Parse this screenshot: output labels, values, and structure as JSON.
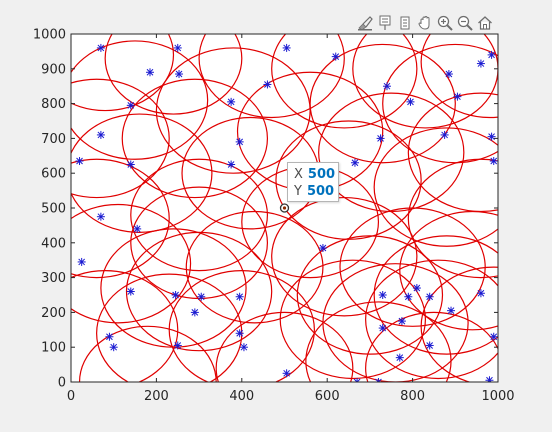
{
  "toolbar": {
    "icons": [
      "brush-icon",
      "data-tips-icon",
      "select-icon",
      "pan-icon",
      "zoom-in-icon",
      "zoom-out-icon",
      "home-icon"
    ]
  },
  "colors": {
    "circle": "#e00000",
    "marker": "#1a1ad1",
    "axes_bg": "#ffffff",
    "figure_bg": "#f0f0f0",
    "datatip_value": "#0072bd"
  },
  "datatip": {
    "x_label": "X",
    "x_value": "500",
    "y_label": "Y",
    "y_value": "500"
  },
  "chart_data": {
    "type": "scatter",
    "xlim": [
      0,
      1000
    ],
    "ylim": [
      0,
      1000
    ],
    "x_ticks": [
      "0",
      "200",
      "400",
      "600",
      "800",
      "1000"
    ],
    "y_ticks": [
      "0",
      "100",
      "200",
      "300",
      "400",
      "500",
      "600",
      "700",
      "800",
      "900",
      "1000"
    ],
    "grid": false,
    "highlighted_point": {
      "x": 500,
      "y": 500
    },
    "points": [
      {
        "x": 70,
        "y": 960
      },
      {
        "x": 250,
        "y": 960
      },
      {
        "x": 505,
        "y": 960
      },
      {
        "x": 620,
        "y": 935
      },
      {
        "x": 985,
        "y": 940
      },
      {
        "x": 185,
        "y": 890
      },
      {
        "x": 253,
        "y": 885
      },
      {
        "x": 460,
        "y": 855
      },
      {
        "x": 740,
        "y": 850
      },
      {
        "x": 885,
        "y": 885
      },
      {
        "x": 140,
        "y": 795
      },
      {
        "x": 375,
        "y": 805
      },
      {
        "x": 795,
        "y": 805
      },
      {
        "x": 905,
        "y": 820
      },
      {
        "x": 70,
        "y": 710
      },
      {
        "x": 395,
        "y": 690
      },
      {
        "x": 725,
        "y": 700
      },
      {
        "x": 875,
        "y": 710
      },
      {
        "x": 985,
        "y": 705
      },
      {
        "x": 20,
        "y": 635
      },
      {
        "x": 140,
        "y": 625
      },
      {
        "x": 375,
        "y": 625
      },
      {
        "x": 665,
        "y": 630
      },
      {
        "x": 990,
        "y": 635
      },
      {
        "x": 70,
        "y": 475
      },
      {
        "x": 155,
        "y": 440
      },
      {
        "x": 590,
        "y": 385
      },
      {
        "x": 25,
        "y": 345
      },
      {
        "x": 140,
        "y": 260
      },
      {
        "x": 245,
        "y": 250
      },
      {
        "x": 305,
        "y": 245
      },
      {
        "x": 395,
        "y": 245
      },
      {
        "x": 290,
        "y": 200
      },
      {
        "x": 730,
        "y": 250
      },
      {
        "x": 790,
        "y": 245
      },
      {
        "x": 840,
        "y": 245
      },
      {
        "x": 890,
        "y": 205
      },
      {
        "x": 960,
        "y": 255
      },
      {
        "x": 90,
        "y": 130
      },
      {
        "x": 100,
        "y": 100
      },
      {
        "x": 250,
        "y": 105
      },
      {
        "x": 395,
        "y": 140
      },
      {
        "x": 405,
        "y": 100
      },
      {
        "x": 730,
        "y": 155
      },
      {
        "x": 775,
        "y": 175
      },
      {
        "x": 840,
        "y": 105
      },
      {
        "x": 990,
        "y": 130
      },
      {
        "x": 770,
        "y": 70
      },
      {
        "x": 505,
        "y": 25
      },
      {
        "x": 670,
        "y": 0
      },
      {
        "x": 720,
        "y": 0
      },
      {
        "x": 980,
        "y": 5
      },
      {
        "x": 960,
        "y": 915
      },
      {
        "x": 810,
        "y": 270
      }
    ],
    "circles": [
      {
        "cx": 80,
        "cy": 940,
        "r": 160
      },
      {
        "cx": 240,
        "cy": 930,
        "r": 160
      },
      {
        "cx": 470,
        "cy": 930,
        "r": 170
      },
      {
        "cx": 640,
        "cy": 900,
        "r": 170
      },
      {
        "cx": 830,
        "cy": 900,
        "r": 170
      },
      {
        "cx": 980,
        "cy": 920,
        "r": 160
      },
      {
        "cx": 150,
        "cy": 810,
        "r": 170
      },
      {
        "cx": 380,
        "cy": 780,
        "r": 180
      },
      {
        "cx": 730,
        "cy": 800,
        "r": 170
      },
      {
        "cx": 900,
        "cy": 800,
        "r": 170
      },
      {
        "cx": 60,
        "cy": 700,
        "r": 170
      },
      {
        "cx": 290,
        "cy": 700,
        "r": 170
      },
      {
        "cx": 560,
        "cy": 720,
        "r": 170
      },
      {
        "cx": 750,
        "cy": 660,
        "r": 170
      },
      {
        "cx": 960,
        "cy": 660,
        "r": 170
      },
      {
        "cx": 160,
        "cy": 600,
        "r": 170
      },
      {
        "cx": 420,
        "cy": 600,
        "r": 160
      },
      {
        "cx": 650,
        "cy": 580,
        "r": 170
      },
      {
        "cx": 880,
        "cy": 560,
        "r": 170
      },
      {
        "cx": 60,
        "cy": 470,
        "r": 170
      },
      {
        "cx": 300,
        "cy": 480,
        "r": 160
      },
      {
        "cx": 560,
        "cy": 460,
        "r": 160
      },
      {
        "cx": 960,
        "cy": 470,
        "r": 170
      },
      {
        "cx": 110,
        "cy": 340,
        "r": 170
      },
      {
        "cx": 240,
        "cy": 270,
        "r": 170
      },
      {
        "cx": 300,
        "cy": 260,
        "r": 170
      },
      {
        "cx": 430,
        "cy": 330,
        "r": 160
      },
      {
        "cx": 640,
        "cy": 360,
        "r": 170
      },
      {
        "cx": 800,
        "cy": 330,
        "r": 170
      },
      {
        "cx": 940,
        "cy": 320,
        "r": 170
      },
      {
        "cx": 80,
        "cy": 150,
        "r": 170
      },
      {
        "cx": 230,
        "cy": 140,
        "r": 170
      },
      {
        "cx": 400,
        "cy": 150,
        "r": 170
      },
      {
        "cx": 660,
        "cy": 180,
        "r": 170
      },
      {
        "cx": 760,
        "cy": 170,
        "r": 170
      },
      {
        "cx": 860,
        "cy": 180,
        "r": 170
      },
      {
        "cx": 990,
        "cy": 160,
        "r": 170
      },
      {
        "cx": 720,
        "cy": 60,
        "r": 170
      },
      {
        "cx": 500,
        "cy": 40,
        "r": 160
      },
      {
        "cx": 850,
        "cy": 40,
        "r": 160
      },
      {
        "cx": 300,
        "cy": 400,
        "r": 160
      },
      {
        "cx": 700,
        "cy": 250,
        "r": 170
      },
      {
        "cx": 880,
        "cy": 250,
        "r": 170
      },
      {
        "cx": 180,
        "cy": 0,
        "r": 160
      }
    ]
  }
}
